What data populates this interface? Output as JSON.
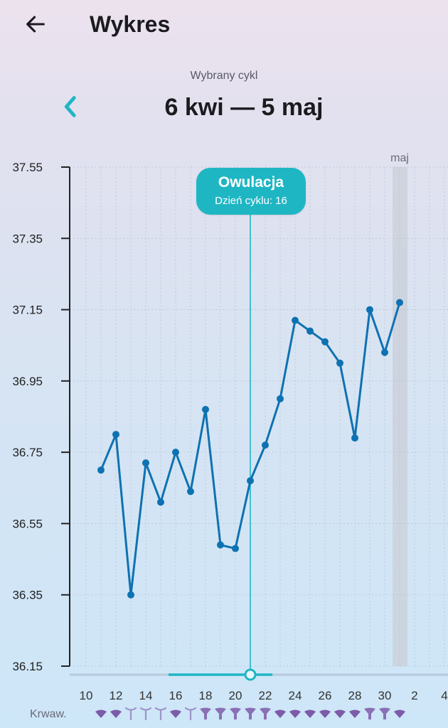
{
  "header": {
    "title": "Wykres",
    "back_icon": "arrow-left-icon"
  },
  "cycle": {
    "caption": "Wybrany cykl",
    "range": "6 kwi — 5 maj",
    "prev_icon": "chevron-left-icon",
    "accent": "#1fb6c4"
  },
  "ovulation": {
    "title": "Owulacja",
    "subtitle": "Dzień cyklu: 16",
    "date_day": 21
  },
  "bleeding": {
    "label": "Krwaw.",
    "color": "#7c5ba8"
  },
  "colors": {
    "line": "#0e72b2",
    "marker": "#1fb6c4",
    "highlight": "#c9cfd8"
  },
  "chart_data": {
    "type": "line",
    "title": "",
    "xlabel": "",
    "ylabel": "",
    "y_ticks": [
      "37.55",
      "37.35",
      "37.15",
      "36.95",
      "36.75",
      "36.55",
      "36.35",
      "36.15"
    ],
    "ylim": [
      36.15,
      37.55
    ],
    "x_ticks": [
      "10",
      "12",
      "14",
      "16",
      "18",
      "20",
      "22",
      "24",
      "26",
      "28",
      "30",
      "2",
      "4"
    ],
    "month_label": "maj",
    "highlight_day": 31,
    "grid": true,
    "series": [
      {
        "x": [
          11,
          12,
          13,
          14,
          15,
          16,
          17,
          18,
          19,
          20,
          21,
          22,
          23,
          24,
          25,
          26,
          27,
          28,
          29,
          30,
          31
        ],
        "values": [
          36.7,
          36.8,
          36.35,
          36.72,
          36.61,
          36.75,
          36.64,
          36.87,
          36.49,
          36.48,
          36.67,
          36.77,
          36.9,
          37.12,
          37.09,
          37.06,
          37.0,
          36.79,
          37.15,
          37.03,
          37.17
        ]
      }
    ],
    "bleeding_days": [
      {
        "day": 11,
        "level": "heavy"
      },
      {
        "day": 12,
        "level": "heavy"
      },
      {
        "day": 13,
        "level": "light"
      },
      {
        "day": 14,
        "level": "light"
      },
      {
        "day": 15,
        "level": "light"
      },
      {
        "day": 16,
        "level": "heavy"
      },
      {
        "day": 17,
        "level": "light"
      },
      {
        "day": 18,
        "level": "medium"
      },
      {
        "day": 19,
        "level": "medium"
      },
      {
        "day": 20,
        "level": "medium"
      },
      {
        "day": 21,
        "level": "medium"
      },
      {
        "day": 22,
        "level": "medium"
      },
      {
        "day": 23,
        "level": "heavy"
      },
      {
        "day": 24,
        "level": "heavy"
      },
      {
        "day": 25,
        "level": "heavy"
      },
      {
        "day": 26,
        "level": "heavy"
      },
      {
        "day": 27,
        "level": "heavy"
      },
      {
        "day": 28,
        "level": "heavy"
      },
      {
        "day": 29,
        "level": "medium"
      },
      {
        "day": 30,
        "level": "medium"
      },
      {
        "day": 31,
        "level": "heavy"
      }
    ]
  }
}
